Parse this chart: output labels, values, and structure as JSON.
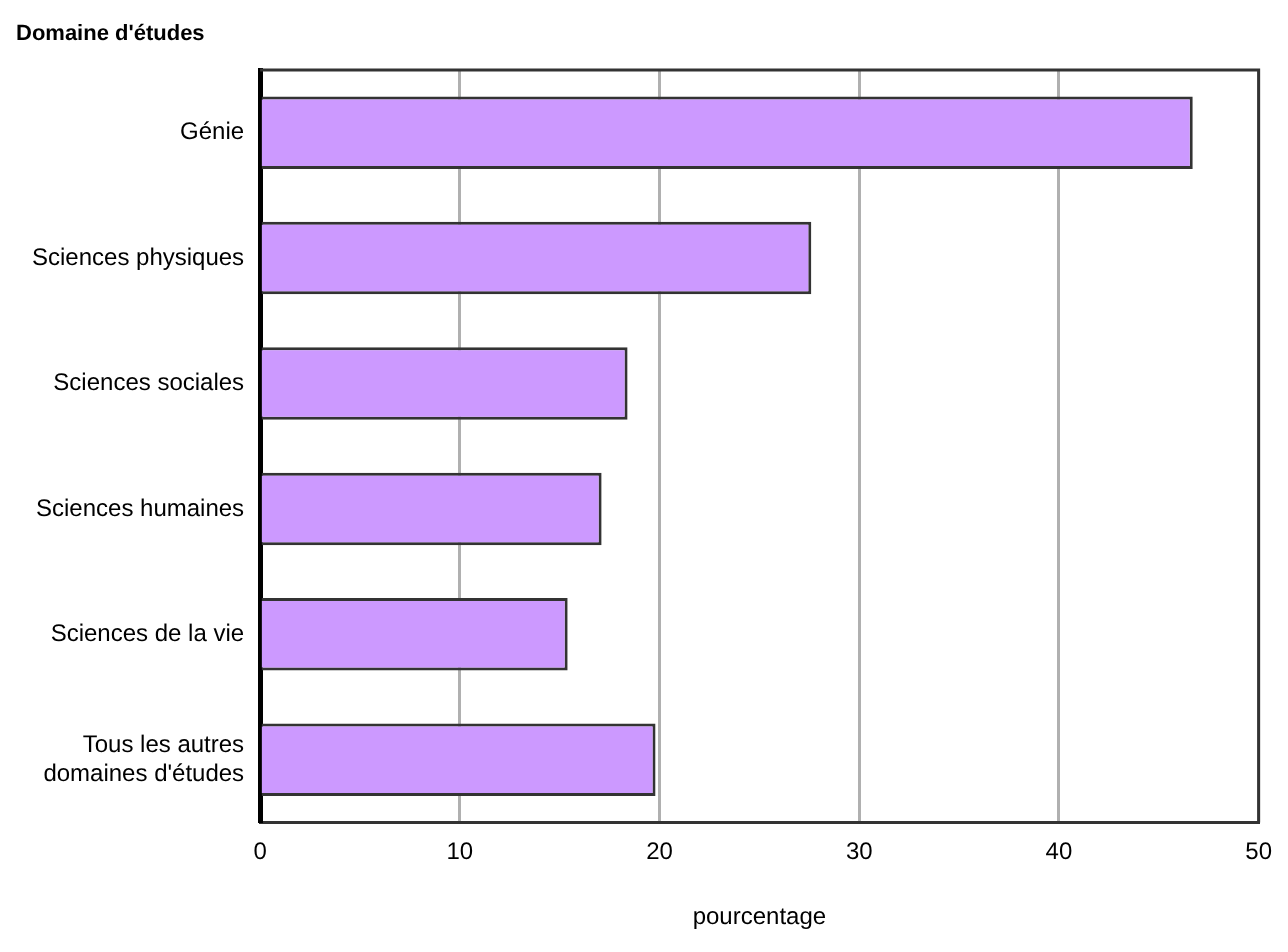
{
  "chart_data": {
    "type": "bar",
    "orientation": "horizontal",
    "ylabel": "Domaine d'études",
    "xlabel": "pourcentage",
    "categories": [
      "Génie",
      "Sciences physiques",
      "Sciences sociales",
      "Sciences humaines",
      "Sciences de la vie",
      "Tous les autres domaines d'études"
    ],
    "values": [
      46.7,
      27.6,
      18.4,
      17.1,
      15.4,
      19.8
    ],
    "color": "#cc99ff",
    "xlim": [
      0,
      50
    ],
    "xticks": [
      0,
      10,
      20,
      30,
      40,
      50
    ],
    "grid": "x"
  }
}
